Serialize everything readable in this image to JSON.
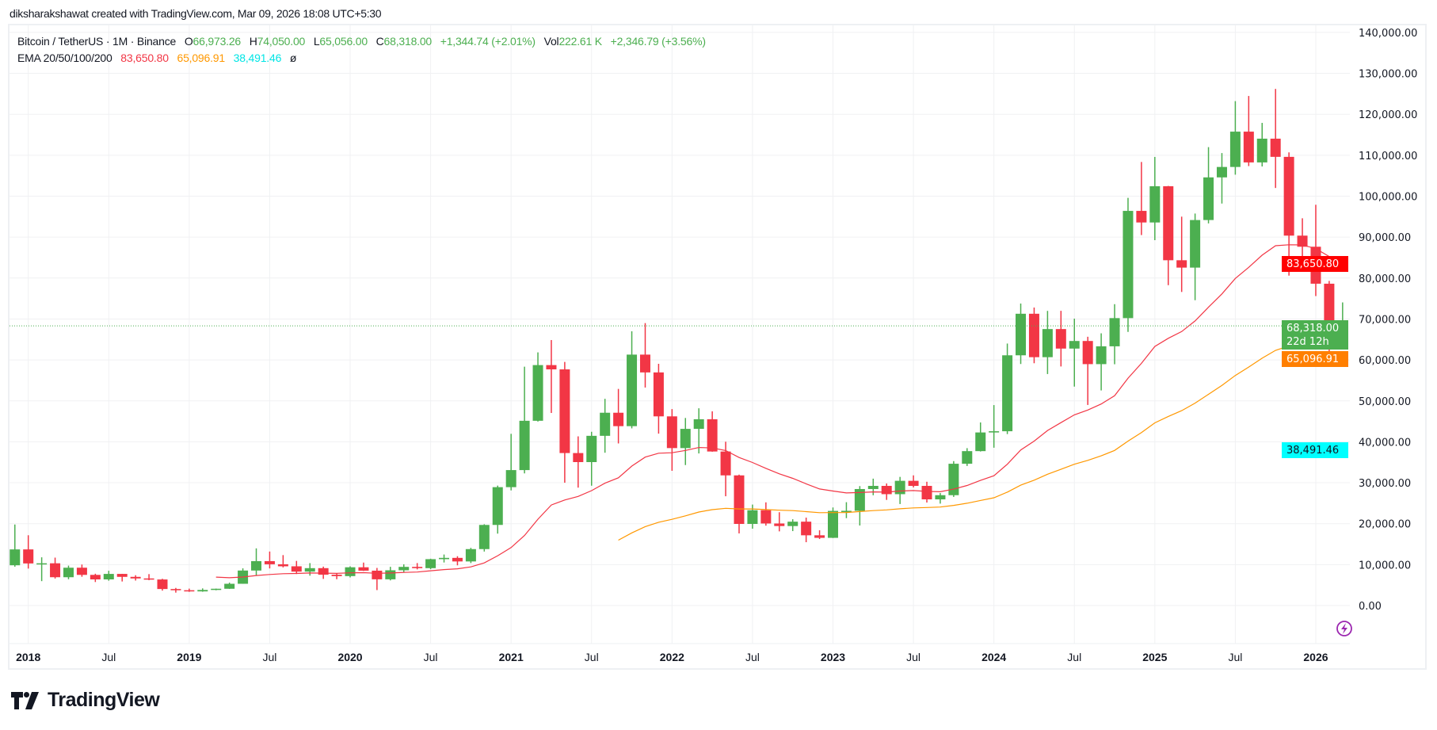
{
  "header": {
    "attribution": "diksharakshawat created with TradingView.com, Mar 09, 2026 18:08 UTC+5:30"
  },
  "legend": {
    "symbol": "Bitcoin / TetherUS · 1M · Binance",
    "open_label": "O",
    "open": "66,973.26",
    "high_label": "H",
    "high": "74,050.00",
    "low_label": "L",
    "low": "65,056.00",
    "close_label": "C",
    "close": "68,318.00",
    "change": "+1,344.74 (+2.01%)",
    "vol_label": "Vol",
    "vol": "222.61 K",
    "vol_change": "+2,346.79 (+3.56%)",
    "ema_label": "EMA 20/50/100/200",
    "ema20": "83,650.80",
    "ema50": "65,096.91",
    "ema100": "38,491.46",
    "ema200": "ø"
  },
  "price_axis": {
    "ticks": [
      "0.00",
      "10,000.00",
      "20,000.00",
      "30,000.00",
      "40,000.00",
      "50,000.00",
      "60,000.00",
      "70,000.00",
      "80,000.00",
      "90,000.00",
      "100,000.00",
      "110,000.00",
      "120,000.00",
      "130,000.00",
      "140,000.00"
    ],
    "labels": {
      "ema20": "83,650.80",
      "last_price": "68,318.00",
      "countdown": "22d 12h",
      "ema50": "65,096.91",
      "ema100": "38,491.46"
    }
  },
  "logo": {
    "text": "TradingView"
  },
  "colors": {
    "up": "#4caf50",
    "down": "#f23645",
    "ema20": "#f23645",
    "ema50": "#ff9800",
    "ema100": "#00ffff",
    "grid": "#f0f1f3"
  },
  "icons": {
    "logo": "tradingview-logo-icon",
    "alert": "lightning-icon"
  },
  "chart_data": {
    "type": "candlestick",
    "title": "Bitcoin / TetherUS · 1M · Binance",
    "ylim": [
      0,
      140000
    ],
    "grid": true,
    "x_ticks": [
      {
        "date": "2018-01",
        "label": "2018",
        "year": true
      },
      {
        "date": "2018-07",
        "label": "Jul"
      },
      {
        "date": "2019-01",
        "label": "2019",
        "year": true
      },
      {
        "date": "2019-07",
        "label": "Jul"
      },
      {
        "date": "2020-01",
        "label": "2020",
        "year": true
      },
      {
        "date": "2020-07",
        "label": "Jul"
      },
      {
        "date": "2021-01",
        "label": "2021",
        "year": true
      },
      {
        "date": "2021-07",
        "label": "Jul"
      },
      {
        "date": "2022-01",
        "label": "2022",
        "year": true
      },
      {
        "date": "2022-07",
        "label": "Jul"
      },
      {
        "date": "2023-01",
        "label": "2023",
        "year": true
      },
      {
        "date": "2023-07",
        "label": "Jul"
      },
      {
        "date": "2024-01",
        "label": "2024",
        "year": true
      },
      {
        "date": "2024-07",
        "label": "Jul"
      },
      {
        "date": "2025-01",
        "label": "2025",
        "year": true
      },
      {
        "date": "2025-07",
        "label": "Jul"
      },
      {
        "date": "2026-01",
        "label": "2026",
        "year": true
      }
    ],
    "columns": [
      "date",
      "open",
      "high",
      "low",
      "close"
    ],
    "candles": [
      [
        "2017-12",
        9838,
        19798,
        9500,
        13716
      ],
      [
        "2018-01",
        13716,
        17176,
        9035,
        10285
      ],
      [
        "2018-02",
        10285,
        11786,
        5968,
        10326
      ],
      [
        "2018-03",
        10325,
        11710,
        6600,
        6924
      ],
      [
        "2018-04",
        6922,
        9759,
        6430,
        9246
      ],
      [
        "2018-05",
        9246,
        10020,
        7032,
        7494
      ],
      [
        "2018-06",
        7494,
        7775,
        5750,
        6391
      ],
      [
        "2018-07",
        6391,
        8491,
        6070,
        7730
      ],
      [
        "2018-08",
        7730,
        7750,
        5880,
        7012
      ],
      [
        "2018-09",
        7012,
        7410,
        6111,
        6626
      ],
      [
        "2018-10",
        6626,
        7680,
        6200,
        6372
      ],
      [
        "2018-11",
        6372,
        6545,
        3652,
        4041
      ],
      [
        "2018-12",
        4041,
        4313,
        3156,
        3743
      ],
      [
        "2019-01",
        3743,
        4140,
        3349,
        3458
      ],
      [
        "2019-02",
        3458,
        4199,
        3373,
        3813
      ],
      [
        "2019-03",
        3813,
        4140,
        3733,
        4105
      ],
      [
        "2019-04",
        4105,
        5600,
        4067,
        5320
      ],
      [
        "2019-05",
        5320,
        9090,
        5316,
        8555
      ],
      [
        "2019-06",
        8555,
        13970,
        7444,
        10855
      ],
      [
        "2019-07",
        10855,
        13200,
        9069,
        10086
      ],
      [
        "2019-08",
        10086,
        12325,
        9320,
        9590
      ],
      [
        "2019-09",
        9590,
        10905,
        7710,
        8289
      ],
      [
        "2019-10",
        8289,
        10370,
        7300,
        9140
      ],
      [
        "2019-11",
        9140,
        9513,
        6515,
        7540
      ],
      [
        "2019-12",
        7540,
        7750,
        6435,
        7195
      ],
      [
        "2020-01",
        7195,
        9579,
        6871,
        9352
      ],
      [
        "2020-02",
        9352,
        10500,
        8445,
        8523
      ],
      [
        "2020-03",
        8523,
        9189,
        3782,
        6410
      ],
      [
        "2020-04",
        6410,
        9468,
        6150,
        8620
      ],
      [
        "2020-05",
        8620,
        10067,
        8117,
        9448
      ],
      [
        "2020-06",
        9448,
        10380,
        8833,
        9138
      ],
      [
        "2020-07",
        9138,
        11444,
        8893,
        11335
      ],
      [
        "2020-08",
        11335,
        12468,
        10518,
        11649
      ],
      [
        "2020-09",
        11649,
        12050,
        9825,
        10776
      ],
      [
        "2020-10",
        10776,
        14100,
        10374,
        13791
      ],
      [
        "2020-11",
        13791,
        19863,
        13195,
        19695
      ],
      [
        "2020-12",
        19695,
        29300,
        17572,
        28923
      ],
      [
        "2021-01",
        28923,
        41950,
        28130,
        33092
      ],
      [
        "2021-02",
        33092,
        58352,
        32296,
        45136
      ],
      [
        "2021-03",
        45136,
        61844,
        44950,
        58740
      ],
      [
        "2021-04",
        58740,
        64854,
        47044,
        57694
      ],
      [
        "2021-05",
        57694,
        59500,
        30000,
        37253
      ],
      [
        "2021-06",
        37253,
        41330,
        28805,
        35045
      ],
      [
        "2021-07",
        35045,
        42448,
        29278,
        41461
      ],
      [
        "2021-08",
        41461,
        50500,
        37332,
        47100
      ],
      [
        "2021-09",
        47100,
        52920,
        39600,
        43824
      ],
      [
        "2021-10",
        43824,
        67000,
        43283,
        61299
      ],
      [
        "2021-11",
        61299,
        69000,
        53256,
        56950
      ],
      [
        "2021-12",
        56950,
        59053,
        42000,
        46216
      ],
      [
        "2022-01",
        46216,
        47990,
        32917,
        38466
      ],
      [
        "2022-02",
        38466,
        45821,
        34322,
        43160
      ],
      [
        "2022-03",
        43160,
        48189,
        37155,
        45510
      ],
      [
        "2022-04",
        45510,
        47444,
        37578,
        37630
      ],
      [
        "2022-05",
        37630,
        40023,
        26700,
        31801
      ],
      [
        "2022-06",
        31801,
        31982,
        17622,
        19942
      ],
      [
        "2022-07",
        19942,
        24668,
        18781,
        23293
      ],
      [
        "2022-08",
        23296,
        25211,
        19520,
        20050
      ],
      [
        "2022-09",
        20048,
        22799,
        18125,
        19423
      ],
      [
        "2022-10",
        19423,
        21085,
        18190,
        20490
      ],
      [
        "2022-11",
        20490,
        21480,
        15476,
        17164
      ],
      [
        "2022-12",
        17165,
        18387,
        16256,
        16542
      ],
      [
        "2023-01",
        16541,
        23960,
        16499,
        23125
      ],
      [
        "2023-02",
        23125,
        25250,
        21351,
        23141
      ],
      [
        "2023-03",
        23141,
        29184,
        19549,
        28465
      ],
      [
        "2023-04",
        28465,
        31000,
        26942,
        29233
      ],
      [
        "2023-05",
        29233,
        29820,
        25811,
        27210
      ],
      [
        "2023-06",
        27210,
        31431,
        24800,
        30472
      ],
      [
        "2023-07",
        30472,
        31804,
        28861,
        29232
      ],
      [
        "2023-08",
        29232,
        30244,
        25166,
        25940
      ],
      [
        "2023-09",
        25940,
        27483,
        24901,
        26962
      ],
      [
        "2023-10",
        26962,
        35280,
        26538,
        34639
      ],
      [
        "2023-11",
        34640,
        38450,
        34097,
        37723
      ],
      [
        "2023-12",
        37723,
        44729,
        37629,
        42283
      ],
      [
        "2024-01",
        42283,
        48969,
        38555,
        42580
      ],
      [
        "2024-02",
        42580,
        64000,
        41884,
        61130
      ],
      [
        "2024-03",
        61130,
        73777,
        59005,
        71280
      ],
      [
        "2024-04",
        71280,
        72797,
        59191,
        60672
      ],
      [
        "2024-05",
        60672,
        71979,
        56552,
        67540
      ],
      [
        "2024-06",
        67540,
        71997,
        58402,
        62772
      ],
      [
        "2024-07",
        62772,
        70079,
        53485,
        64628
      ],
      [
        "2024-08",
        64628,
        65660,
        49000,
        58974
      ],
      [
        "2024-09",
        58974,
        66499,
        52550,
        63327
      ],
      [
        "2024-10",
        63327,
        73620,
        58946,
        70215
      ],
      [
        "2024-11",
        70215,
        99588,
        66835,
        96407
      ],
      [
        "2024-12",
        96408,
        108353,
        90500,
        93576
      ],
      [
        "2025-01",
        93576,
        109588,
        89256,
        102429
      ],
      [
        "2025-02",
        102429,
        102500,
        78258,
        84349
      ],
      [
        "2025-03",
        84349,
        95000,
        76606,
        82550
      ],
      [
        "2025-04",
        82550,
        95758,
        74589,
        94172
      ],
      [
        "2025-05",
        94172,
        111980,
        93347,
        104591
      ],
      [
        "2025-06",
        104591,
        110530,
        98200,
        107135
      ],
      [
        "2025-07",
        107135,
        123218,
        105250,
        115764
      ],
      [
        "2025-08",
        115764,
        124474,
        107350,
        108246
      ],
      [
        "2025-09",
        108246,
        117900,
        107255,
        114049
      ],
      [
        "2025-10",
        114049,
        126200,
        102000,
        109608
      ],
      [
        "2025-11",
        109608,
        110700,
        80600,
        90360
      ],
      [
        "2025-12",
        90360,
        94600,
        84450,
        87650
      ],
      [
        "2026-01",
        87650,
        97900,
        75600,
        78620
      ],
      [
        "2026-02",
        78620,
        79300,
        60000,
        66973.26
      ],
      [
        "2026-03",
        66973.26,
        74050,
        65056,
        68318
      ]
    ],
    "last_price": 68318,
    "series": [
      {
        "name": "EMA 20",
        "period": 20,
        "last": 83650.8
      },
      {
        "name": "EMA 50",
        "period": 50,
        "last": 65096.91
      },
      {
        "name": "EMA 100",
        "period": 100,
        "last": 38491.46
      }
    ]
  }
}
